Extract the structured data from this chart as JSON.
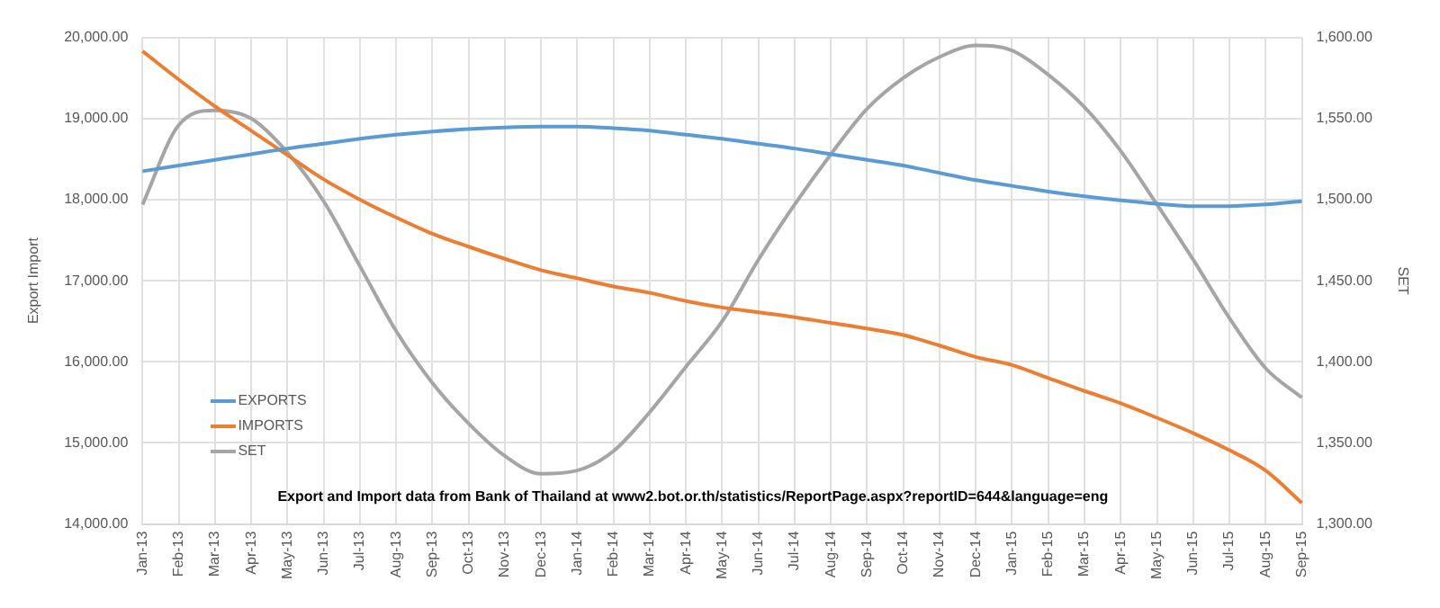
{
  "chart_data": {
    "type": "line",
    "categories": [
      "Jan-13",
      "Feb-13",
      "Mar-13",
      "Apr-13",
      "May-13",
      "Jun-13",
      "Jul-13",
      "Aug-13",
      "Sep-13",
      "Oct-13",
      "Nov-13",
      "Dec-13",
      "Jan-14",
      "Feb-14",
      "Mar-14",
      "Apr-14",
      "May-14",
      "Jun-14",
      "Jul-14",
      "Aug-14",
      "Sep-14",
      "Oct-14",
      "Nov-14",
      "Dec-14",
      "Jan-15",
      "Feb-15",
      "Mar-15",
      "Apr-15",
      "May-15",
      "Jun-15",
      "Jul-15",
      "Aug-15",
      "Sep-15"
    ],
    "series": [
      {
        "name": "EXPORTS",
        "color": "#5b9bd5",
        "values": [
          18350,
          18420,
          18490,
          18560,
          18630,
          18690,
          18750,
          18800,
          18840,
          18870,
          18890,
          18900,
          18900,
          18880,
          18850,
          18800,
          18750,
          18690,
          18630,
          18560,
          18490,
          18420,
          18330,
          18240,
          18170,
          18100,
          18040,
          17990,
          17950,
          17920,
          17920,
          17940,
          17980
        ]
      },
      {
        "name": "IMPORTS",
        "color": "#ed7d31",
        "values": [
          19830,
          19480,
          19150,
          18850,
          18550,
          18250,
          18000,
          17780,
          17580,
          17420,
          17270,
          17130,
          17030,
          16930,
          16850,
          16750,
          16670,
          16610,
          16550,
          16480,
          16410,
          16330,
          16200,
          16060,
          15960,
          15800,
          15640,
          15490,
          15310,
          15120,
          14910,
          14660,
          14260
        ]
      },
      {
        "name": "SET",
        "color": "#a5a5a5",
        "axis": "y2",
        "values": [
          1497,
          1546,
          1555,
          1550,
          1529,
          1499,
          1459,
          1419,
          1387,
          1362,
          1342,
          1331,
          1333,
          1345,
          1369,
          1397,
          1425,
          1463,
          1497,
          1528,
          1556,
          1575,
          1588,
          1595,
          1592,
          1577,
          1557,
          1530,
          1497,
          1463,
          1427,
          1396,
          1378
        ]
      }
    ],
    "ylabel": "Export Import",
    "y2label": "SET",
    "ylim": [
      14000,
      20000
    ],
    "yticks": [
      {
        "value": 14000,
        "label": "14,000.00"
      },
      {
        "value": 15000,
        "label": "15,000.00"
      },
      {
        "value": 16000,
        "label": "16,000.00"
      },
      {
        "value": 17000,
        "label": "17,000.00"
      },
      {
        "value": 18000,
        "label": "18,000.00"
      },
      {
        "value": 19000,
        "label": "19,000.00"
      },
      {
        "value": 20000,
        "label": "20,000.00"
      }
    ],
    "y2lim": [
      1300,
      1600
    ],
    "y2ticks": [
      {
        "value": 1300,
        "label": "1,300.00"
      },
      {
        "value": 1350,
        "label": "1,350.00"
      },
      {
        "value": 1400,
        "label": "1,400.00"
      },
      {
        "value": 1450,
        "label": "1,450.00"
      },
      {
        "value": 1500,
        "label": "1,500.00"
      },
      {
        "value": 1550,
        "label": "1,550.00"
      },
      {
        "value": 1600,
        "label": "1,600.00"
      }
    ],
    "annotations": [
      "Export and Import data from Bank of Thailand at www2.bot.or.th/statistics/ReportPage.aspx?reportID=644&language=eng"
    ],
    "grid": true,
    "legend": "bottom left",
    "marker": "none",
    "line_style": "solid"
  }
}
